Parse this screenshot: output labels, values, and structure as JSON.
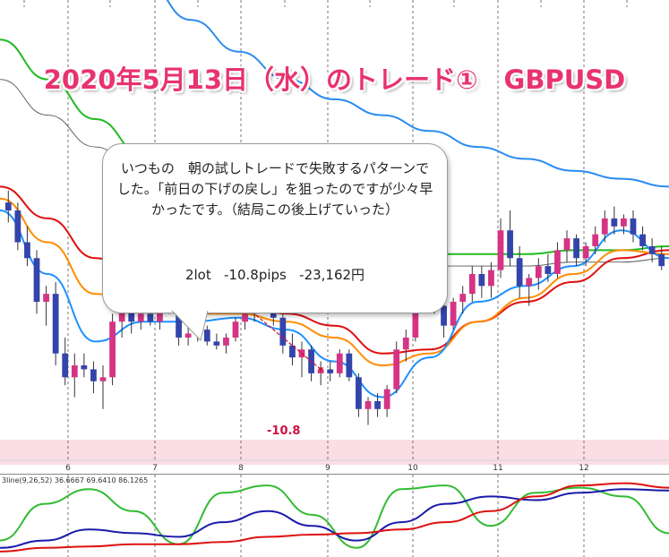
{
  "title": "2020年5月13日（水）のトレード①　GBPUSD",
  "note": {
    "text": "いつもの　朝の試しトレードで失敗するパターンでした。「前日の下げの戻し」を狙ったのですが少々早かったです。（結局この後上げていった）",
    "result": "2lot   -10.8pips   -23,162円"
  },
  "trade_result_label": "-10.8",
  "indicator_label": "3line(9,26,52) 36.6667 69.6410 86.1265",
  "colors": {
    "title": "#e8336e",
    "bull_candle": "#d63384",
    "bear_candle": "#3344aa",
    "ma_fast": "#1e90ff",
    "ma_mid": "#ff8c00",
    "ma_slow": "#e01010",
    "ma_green": "#22bb22",
    "ma_blue_long": "#2a8cf0",
    "ma_black": "#555555",
    "zone": "#fbdde6"
  },
  "chart_data": {
    "type": "candlestick",
    "x_ticks": [
      "6",
      "7",
      "8",
      "9",
      "10",
      "11",
      "12"
    ],
    "candles": [
      [
        1.2374,
        1.2377,
        1.2369,
        1.2372
      ],
      [
        1.2372,
        1.2374,
        1.2362,
        1.2364
      ],
      [
        1.2364,
        1.2368,
        1.2358,
        1.236
      ],
      [
        1.236,
        1.2362,
        1.2346,
        1.2349
      ],
      [
        1.2349,
        1.2353,
        1.2343,
        1.2351
      ],
      [
        1.2351,
        1.2354,
        1.2333,
        1.2336
      ],
      [
        1.2336,
        1.234,
        1.2328,
        1.233
      ],
      [
        1.233,
        1.2336,
        1.2325,
        1.2333
      ],
      [
        1.2333,
        1.2336,
        1.233,
        1.2332
      ],
      [
        1.2332,
        1.2334,
        1.2326,
        1.2329
      ],
      [
        1.2329,
        1.2333,
        1.2322,
        1.233
      ],
      [
        1.233,
        1.2346,
        1.2328,
        1.2344
      ],
      [
        1.2344,
        1.2352,
        1.234,
        1.2349
      ],
      [
        1.2349,
        1.2352,
        1.2341,
        1.2344
      ],
      [
        1.2344,
        1.235,
        1.2342,
        1.2346
      ],
      [
        1.2346,
        1.2351,
        1.2343,
        1.2344
      ],
      [
        1.2344,
        1.2353,
        1.2342,
        1.235
      ],
      [
        1.235,
        1.2352,
        1.2346,
        1.2347
      ],
      [
        1.2347,
        1.2348,
        1.2338,
        1.234
      ],
      [
        1.234,
        1.2343,
        1.2338,
        1.2341
      ],
      [
        1.2341,
        1.2345,
        1.2339,
        1.2342
      ],
      [
        1.2342,
        1.2343,
        1.2338,
        1.2339
      ],
      [
        1.2339,
        1.2341,
        1.2337,
        1.2338
      ],
      [
        1.2338,
        1.2341,
        1.2336,
        1.234
      ],
      [
        1.234,
        1.2345,
        1.2339,
        1.2344
      ],
      [
        1.2344,
        1.2348,
        1.2342,
        1.2346
      ],
      [
        1.2346,
        1.2352,
        1.2344,
        1.235
      ],
      [
        1.235,
        1.2355,
        1.2347,
        1.2352
      ],
      [
        1.2352,
        1.2353,
        1.2343,
        1.2345
      ],
      [
        1.2345,
        1.2346,
        1.2336,
        1.2338
      ],
      [
        1.2338,
        1.2341,
        1.2333,
        1.2335
      ],
      [
        1.2335,
        1.2339,
        1.233,
        1.2337
      ],
      [
        1.2337,
        1.2338,
        1.2329,
        1.2331
      ],
      [
        1.2331,
        1.2334,
        1.2328,
        1.2332
      ],
      [
        1.2332,
        1.2334,
        1.2329,
        1.2331
      ],
      [
        1.2331,
        1.2337,
        1.233,
        1.2336
      ],
      [
        1.2336,
        1.2337,
        1.2329,
        1.233
      ],
      [
        1.233,
        1.2331,
        1.232,
        1.2322
      ],
      [
        1.2322,
        1.2325,
        1.2318,
        1.2324
      ],
      [
        1.2324,
        1.2326,
        1.232,
        1.2322
      ],
      [
        1.2322,
        1.2328,
        1.232,
        1.2327
      ],
      [
        1.2327,
        1.2339,
        1.2326,
        1.2337
      ],
      [
        1.2337,
        1.2342,
        1.2334,
        1.234
      ],
      [
        1.234,
        1.2353,
        1.2339,
        1.2351
      ],
      [
        1.2351,
        1.2356,
        1.2347,
        1.2354
      ],
      [
        1.2354,
        1.2357,
        1.2346,
        1.2348
      ],
      [
        1.2348,
        1.2351,
        1.234,
        1.2343
      ],
      [
        1.2343,
        1.235,
        1.2342,
        1.2349
      ],
      [
        1.2349,
        1.2353,
        1.2346,
        1.2351
      ],
      [
        1.2351,
        1.2358,
        1.2349,
        1.2356
      ],
      [
        1.2356,
        1.2358,
        1.235,
        1.2353
      ],
      [
        1.2353,
        1.2359,
        1.235,
        1.2357
      ],
      [
        1.2357,
        1.237,
        1.2355,
        1.2367
      ],
      [
        1.2367,
        1.2372,
        1.2358,
        1.236
      ],
      [
        1.236,
        1.2363,
        1.235,
        1.2353
      ],
      [
        1.2353,
        1.2356,
        1.2348,
        1.2355
      ],
      [
        1.2355,
        1.236,
        1.2352,
        1.2358
      ],
      [
        1.2358,
        1.2361,
        1.2354,
        1.2356
      ],
      [
        1.2356,
        1.2364,
        1.2355,
        1.2362
      ],
      [
        1.2362,
        1.2367,
        1.2359,
        1.2365
      ],
      [
        1.2365,
        1.2366,
        1.2358,
        1.236
      ],
      [
        1.236,
        1.2364,
        1.2358,
        1.2363
      ],
      [
        1.2363,
        1.2368,
        1.2361,
        1.2366
      ],
      [
        1.2366,
        1.2372,
        1.2364,
        1.237
      ],
      [
        1.237,
        1.2373,
        1.2366,
        1.2368
      ],
      [
        1.2368,
        1.2371,
        1.2366,
        1.237
      ],
      [
        1.237,
        1.2372,
        1.2364,
        1.2366
      ],
      [
        1.2366,
        1.2368,
        1.2362,
        1.2363
      ],
      [
        1.2363,
        1.2365,
        1.2359,
        1.2361
      ],
      [
        1.2361,
        1.2363,
        1.2357,
        1.2358
      ]
    ],
    "y_range": [
      1.231,
      1.2425
    ],
    "moving_averages": [
      {
        "key": "ma_blue_long",
        "values": [
          1.246,
          1.245,
          1.244,
          1.243,
          1.242,
          1.2412,
          1.2405,
          1.24,
          1.2396,
          1.2392,
          1.2388,
          1.2385,
          1.2382,
          1.238,
          1.2378
        ]
      },
      {
        "key": "ma_green",
        "values": [
          1.2415,
          1.2405,
          1.2395,
          1.2386,
          1.2378,
          1.2372,
          1.2367,
          1.2364,
          1.2362,
          1.2361,
          1.2361,
          1.2361,
          1.2362,
          1.2362,
          1.2363
        ]
      },
      {
        "key": "ma_black",
        "values": [
          1.2405,
          1.2396,
          1.2388,
          1.238,
          1.2373,
          1.2368,
          1.2363,
          1.236,
          1.2359,
          1.2358,
          1.2358,
          1.2358,
          1.2359,
          1.2359,
          1.236
        ]
      },
      {
        "key": "ma_slow",
        "values": [
          1.2378,
          1.237,
          1.236,
          1.2355,
          1.235,
          1.2349,
          1.2346,
          1.2343,
          1.2336,
          1.2337,
          1.2344,
          1.2349,
          1.2354,
          1.236,
          1.2362
        ]
      },
      {
        "key": "ma_mid",
        "values": [
          1.2375,
          1.2364,
          1.2351,
          1.2348,
          1.2346,
          1.2346,
          1.2344,
          1.234,
          1.2333,
          1.2336,
          1.2344,
          1.235,
          1.2356,
          1.2362,
          1.2361
        ]
      },
      {
        "key": "ma_fast",
        "values": [
          1.2372,
          1.2356,
          1.2339,
          1.2344,
          1.2344,
          1.2345,
          1.2342,
          1.2334,
          1.2325,
          1.2335,
          1.2349,
          1.2353,
          1.2358,
          1.2367,
          1.236
        ]
      }
    ],
    "trade": {
      "entry_index": 26,
      "exit_index": 33,
      "pips": "-10.8"
    },
    "indicator": {
      "name": "3line",
      "params": [
        9,
        26,
        52
      ],
      "values": [
        36.6667,
        69.641,
        86.1265
      ],
      "series": [
        {
          "key": "green",
          "values": [
            20,
            70,
            90,
            60,
            15,
            85,
            95,
            55,
            10,
            90,
            95,
            40,
            85,
            92,
            80,
            30
          ]
        },
        {
          "key": "blue",
          "values": [
            10,
            20,
            35,
            30,
            25,
            45,
            60,
            40,
            20,
            45,
            70,
            80,
            75,
            85,
            90,
            88
          ]
        },
        {
          "key": "red",
          "values": [
            5,
            10,
            12,
            15,
            15,
            18,
            25,
            28,
            30,
            35,
            45,
            60,
            80,
            95,
            98,
            92
          ]
        }
      ]
    }
  }
}
